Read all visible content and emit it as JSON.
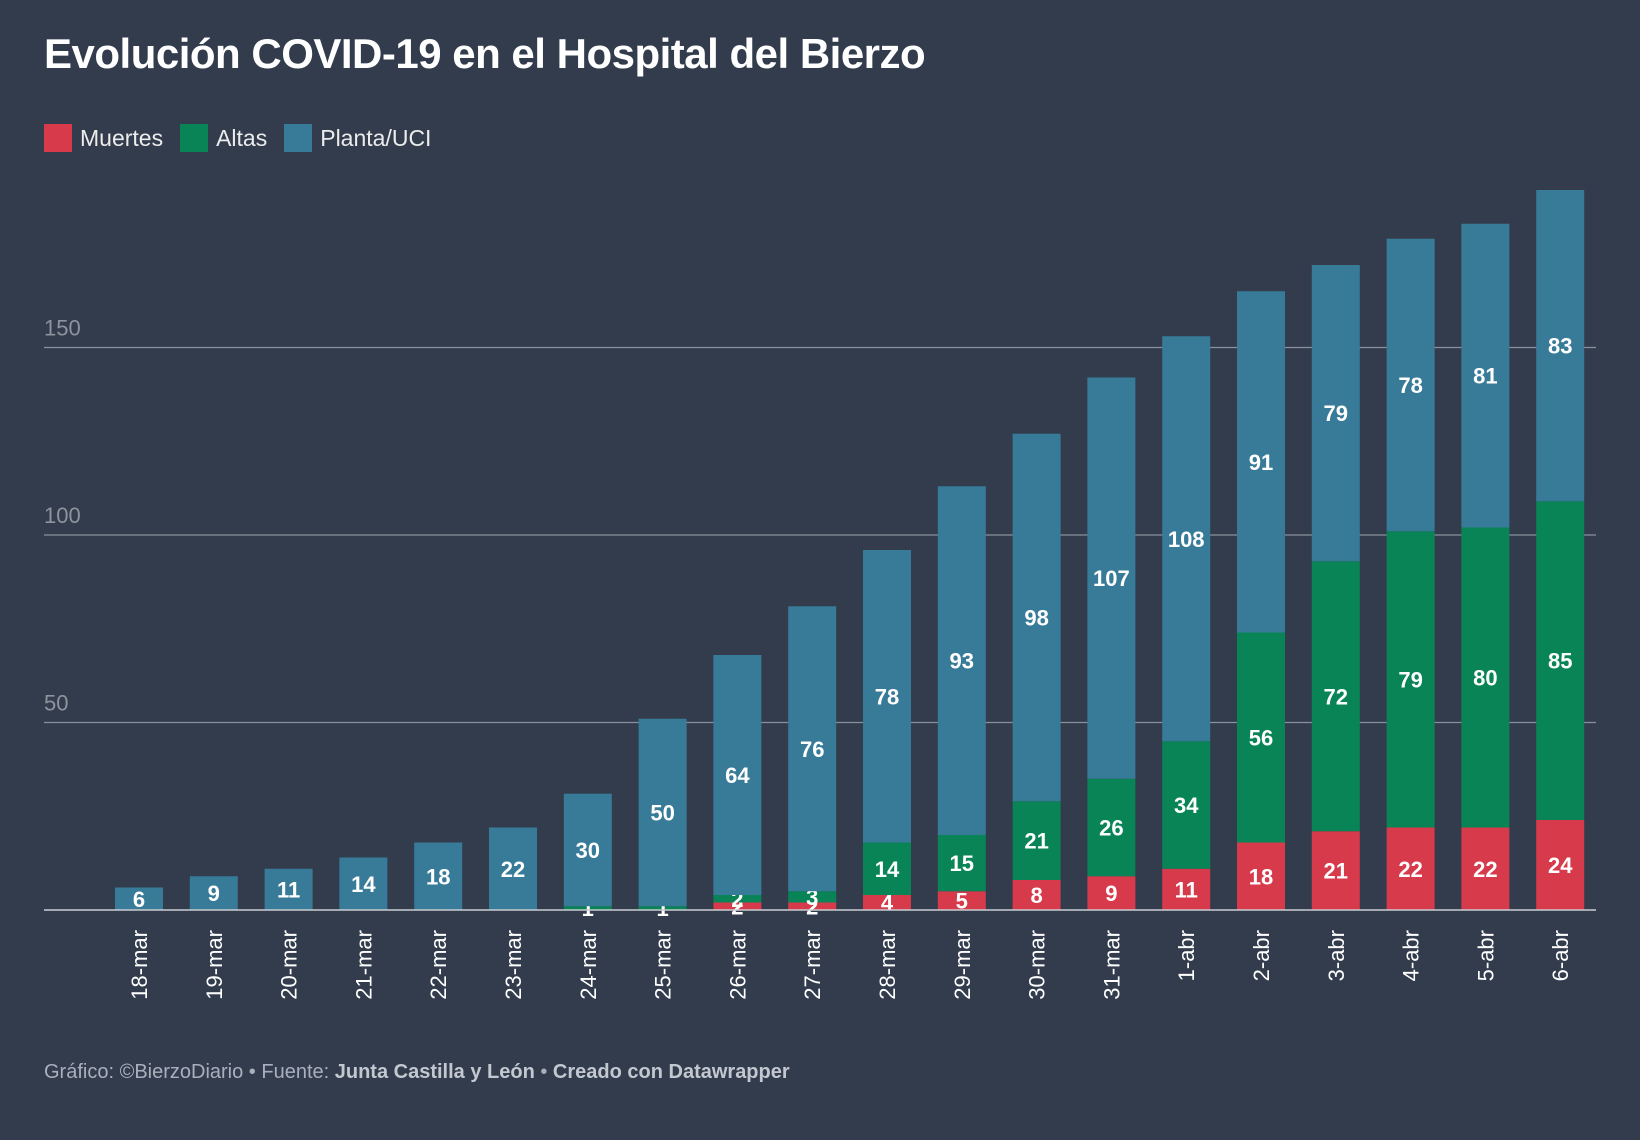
{
  "title": "Evolución COVID-19 en el Hospital del Bierzo",
  "legend": [
    {
      "name": "Muertes",
      "color": "#d73a4a"
    },
    {
      "name": "Altas",
      "color": "#088457"
    },
    {
      "name": "Planta/UCI",
      "color": "#387b98"
    }
  ],
  "footer": {
    "prefix": "Gráfico: ©BierzoDiario • Fuente: ",
    "source": "Junta Castilla y León",
    "separator": " • ",
    "credit": "Creado con Datawrapper"
  },
  "chart_data": {
    "type": "bar",
    "stacked": true,
    "title": "Evolución COVID-19 en el Hospital del Bierzo",
    "categories": [
      "18-mar",
      "19-mar",
      "20-mar",
      "21-mar",
      "22-mar",
      "23-mar",
      "24-mar",
      "25-mar",
      "26-mar",
      "27-mar",
      "28-mar",
      "29-mar",
      "30-mar",
      "31-mar",
      "1-abr",
      "2-abr",
      "3-abr",
      "4-abr",
      "5-abr",
      "6-abr"
    ],
    "series": [
      {
        "name": "Muertes",
        "color": "#d73a4a",
        "values": [
          0,
          0,
          0,
          0,
          0,
          0,
          0,
          0,
          2,
          2,
          4,
          5,
          8,
          9,
          11,
          18,
          21,
          22,
          22,
          24
        ]
      },
      {
        "name": "Altas",
        "color": "#088457",
        "values": [
          0,
          0,
          0,
          0,
          0,
          0,
          1,
          1,
          2,
          3,
          14,
          15,
          21,
          26,
          34,
          56,
          72,
          79,
          80,
          85
        ]
      },
      {
        "name": "Planta/UCI",
        "color": "#387b98",
        "values": [
          6,
          9,
          11,
          14,
          18,
          22,
          30,
          50,
          64,
          76,
          78,
          93,
          98,
          107,
          108,
          91,
          79,
          78,
          81,
          83
        ]
      }
    ],
    "ylim": [
      0,
      200
    ],
    "yticks": [
      50,
      100,
      150
    ],
    "grid": true,
    "legend_position": "top-left",
    "xlabel": "",
    "ylabel": ""
  }
}
